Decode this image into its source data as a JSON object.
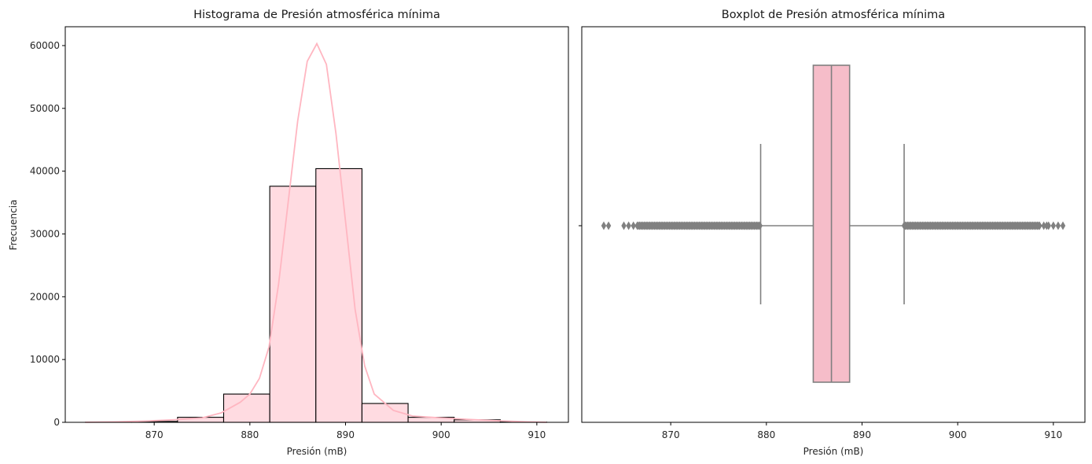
{
  "colors": {
    "bar_fill": "#ffdbe1",
    "bar_edge": "#000000",
    "kde_line": "#ffb6c1",
    "box_fill": "#f6bdc9",
    "box_edge": "#808080",
    "axis": "#000000"
  },
  "chart_data": [
    {
      "type": "bar",
      "subtype": "histogram_with_kde",
      "title": "Histograma de Presión atmosférica mínima",
      "xlabel": "Presión (mB)",
      "ylabel": "Frecuencia",
      "xlim": [
        860.7,
        913.3
      ],
      "ylim": [
        0,
        63000
      ],
      "xticks": [
        870,
        880,
        890,
        900,
        910
      ],
      "yticks": [
        0,
        10000,
        20000,
        30000,
        40000,
        50000,
        60000
      ],
      "bin_edges": [
        862.8,
        867.62,
        872.44,
        877.26,
        882.08,
        886.9,
        891.72,
        896.54,
        901.36,
        906.18,
        911.0
      ],
      "counts": [
        10,
        150,
        800,
        4500,
        37600,
        40400,
        3000,
        800,
        400,
        50
      ],
      "kde": {
        "x": [
          862.8,
          866,
          869,
          872,
          875,
          877,
          879,
          880,
          881,
          882,
          883,
          884,
          885,
          886,
          887,
          888,
          889,
          890,
          891,
          892,
          893,
          895,
          897,
          900,
          903,
          906,
          909,
          911
        ],
        "y": [
          20,
          80,
          200,
          400,
          700,
          1500,
          3200,
          4500,
          7000,
          12000,
          22000,
          35000,
          48000,
          57500,
          60300,
          57000,
          46000,
          32000,
          18000,
          9000,
          4500,
          1900,
          1000,
          700,
          450,
          250,
          80,
          20
        ]
      },
      "grid": false,
      "legend": "none"
    },
    {
      "type": "box",
      "title": "Boxplot de Presión atmosférica mínima",
      "xlabel": "Presión (mB)",
      "ylabel": "",
      "xlim": [
        860.7,
        913.3
      ],
      "xticks": [
        870,
        880,
        890,
        900,
        910
      ],
      "stats": {
        "whisker_low": 879.4,
        "q1": 884.9,
        "median": 886.8,
        "q3": 888.7,
        "whisker_high": 894.4
      },
      "outliers_low": {
        "from": 866.5,
        "to": 879.4,
        "sparse": [
          863.0,
          863.5,
          865.1,
          865.6,
          866.1
        ]
      },
      "outliers_high": {
        "from": 894.4,
        "to": 908.6,
        "sparse": [
          909.0,
          909.3,
          909.5,
          910.0,
          910.5,
          911.0
        ]
      },
      "grid": false,
      "legend": "none"
    }
  ]
}
